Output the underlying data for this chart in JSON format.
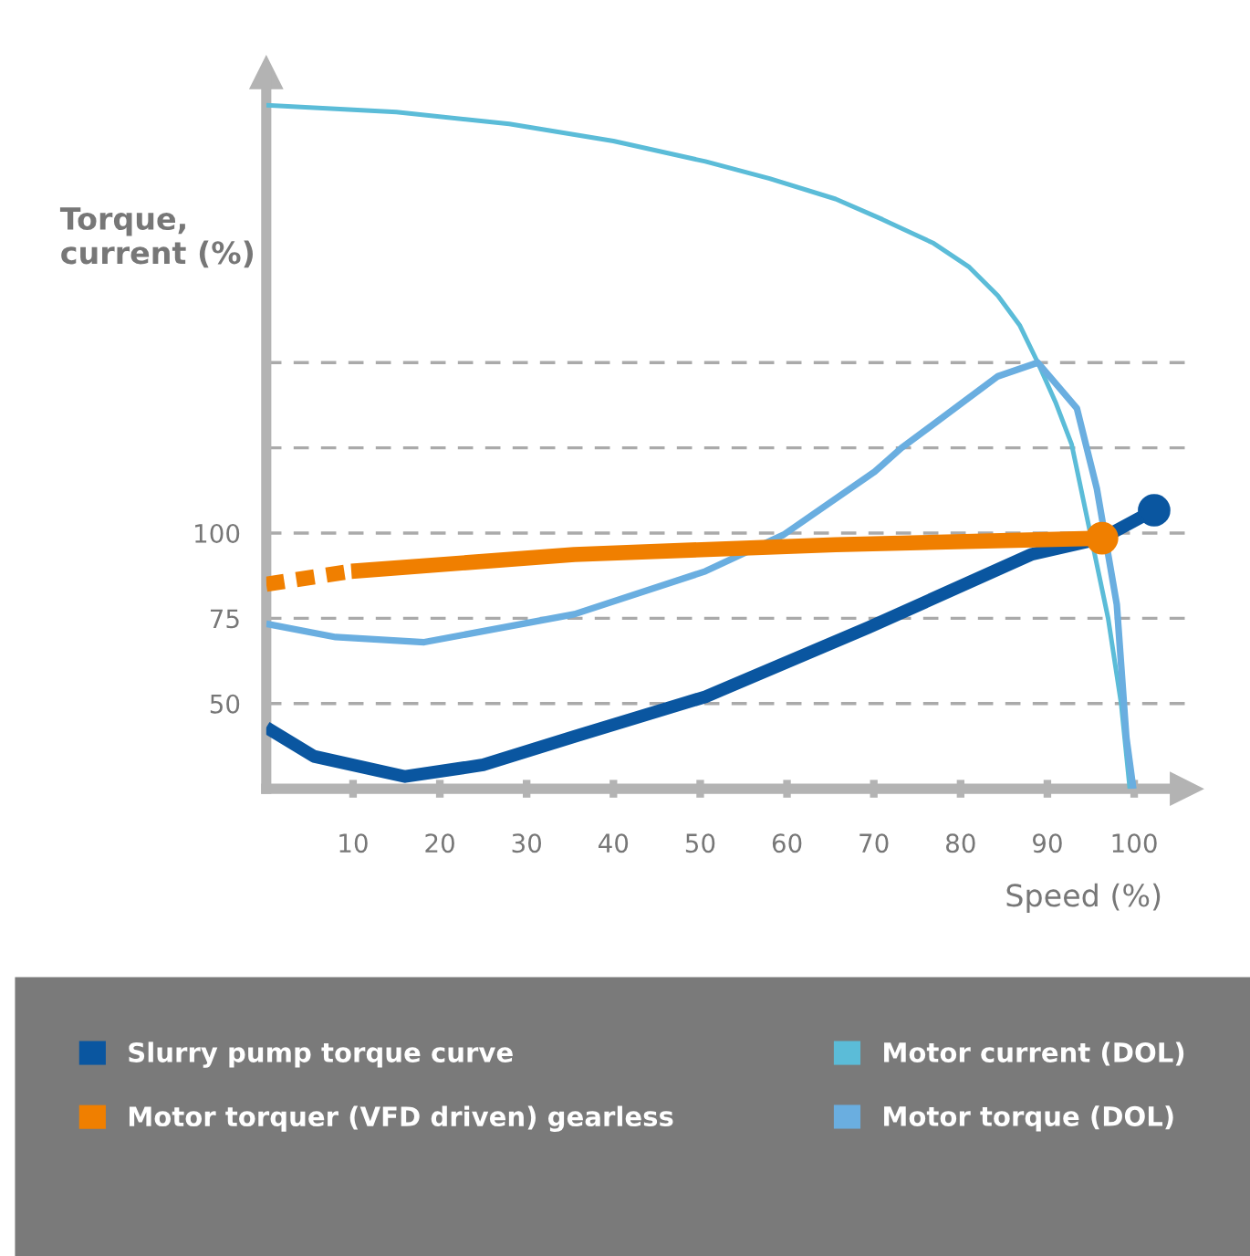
{
  "chart_data": {
    "type": "line",
    "ylabel": "Torque,\ncurrent (%)",
    "xlabel": "Speed (%)",
    "xlim": [
      0,
      106
    ],
    "ylim": [
      25,
      235
    ],
    "xticks": [
      10,
      20,
      30,
      40,
      50,
      60,
      70,
      80,
      90,
      100
    ],
    "yticks": [
      50,
      75,
      100,
      {
        "value": 125,
        "label": null
      },
      {
        "value": 150,
        "label": null
      }
    ],
    "grid": "y",
    "legend": "bottom",
    "series": [
      {
        "name": "Slurry pump torque curve",
        "color": "#0a56a0",
        "x": [
          0,
          5.5,
          16,
          25,
          35.5,
          50.6,
          69.4,
          88.1,
          96.3,
          102.3
        ],
        "values": [
          43,
          34.5,
          28.6,
          32,
          40.3,
          52,
          72.3,
          93.7,
          98.5,
          106.7
        ]
      },
      {
        "name": "Motor torquer (VFD driven) gearless",
        "color": "#f07f00",
        "x": [
          9.8,
          35.5,
          65.6,
          96.3
        ],
        "values": [
          88.8,
          93.7,
          96.6,
          98.5
        ]
      },
      {
        "color": "#f07f00",
        "line_style": "dashed",
        "x": [
          0,
          9.8
        ],
        "values": [
          85,
          88.8
        ]
      },
      {
        "name": "Motor current (DOL)",
        "color": "#5bbcd8",
        "x": [
          0,
          15,
          28,
          40,
          50.6,
          58,
          65.6,
          71,
          76.9,
          81,
          84.3,
          86.8,
          88.9,
          91,
          92.8,
          97,
          98.5,
          99.5
        ],
        "values": [
          225.5,
          223.5,
          220,
          215,
          209,
          204,
          198,
          192,
          185,
          178,
          169.6,
          161,
          150,
          138,
          126,
          75,
          50,
          25
        ]
      },
      {
        "name": "Motor torque (DOL)",
        "color": "#6aaee0",
        "x": [
          0,
          8,
          18.2,
          35.5,
          50.6,
          59.6,
          70.1,
          73.2,
          84.3,
          88.9,
          93.4,
          95.7,
          98,
          99.1,
          99.9
        ],
        "values": [
          73.4,
          69.5,
          68,
          76.2,
          88.8,
          99.5,
          118,
          125,
          146,
          150,
          136.6,
          113,
          79,
          40,
          25
        ]
      },
      {
        "type": "scatter",
        "color": "#f07f00",
        "x": [
          96.3
        ],
        "values": [
          98.5
        ]
      },
      {
        "type": "scatter",
        "color": "#0a56a0",
        "x": [
          102.3
        ],
        "values": [
          106.7
        ]
      }
    ]
  }
}
